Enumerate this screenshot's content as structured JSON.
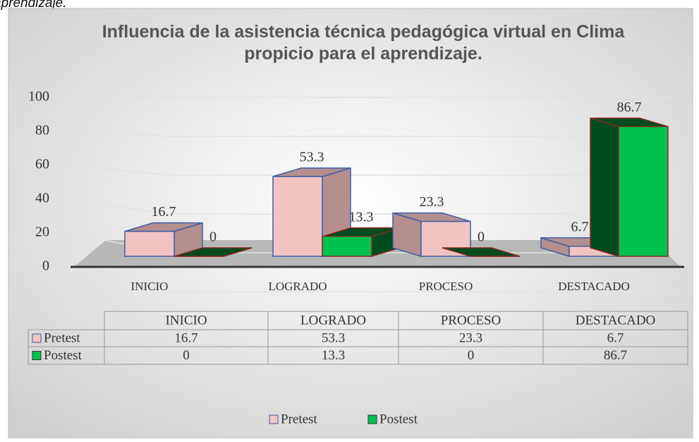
{
  "caption_fragment": "aprendizaje.",
  "chart_data": {
    "type": "bar3d",
    "title": "Influencia de la asistencia técnica pedagógica virtual en Clima propicio para el aprendizaje.",
    "categories": [
      "INICIO",
      "LOGRADO",
      "PROCESO",
      "DESTACADO"
    ],
    "series": [
      {
        "name": "Pretest",
        "color": "#f2c3c3",
        "side_color": "#b58e8e",
        "values": [
          16.7,
          53.3,
          23.3,
          6.7
        ]
      },
      {
        "name": "Postest",
        "color": "#00c050",
        "side_color": "#004a20",
        "values": [
          0,
          13.3,
          0,
          86.7
        ]
      }
    ],
    "ylim": [
      0,
      100
    ],
    "yticks": [
      0,
      20,
      40,
      60,
      80,
      100
    ],
    "grid": true,
    "legend": "bottom",
    "data_table": true
  }
}
